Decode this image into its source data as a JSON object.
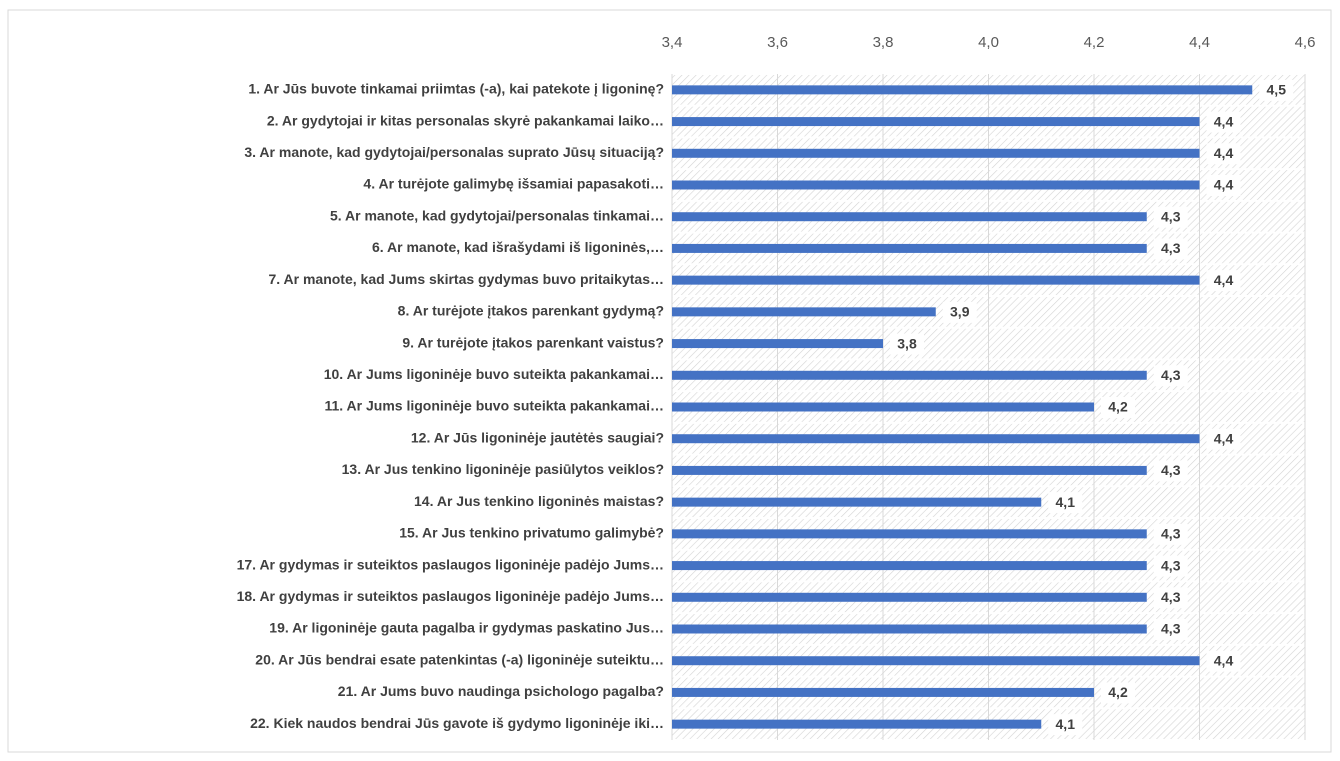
{
  "chart_data": {
    "type": "bar",
    "orientation": "horizontal",
    "categories": [
      "1. Ar Jūs buvote tinkamai priimtas (-a), kai patekote į ligoninę?",
      "2. Ar gydytojai ir kitas personalas skyrė pakankamai laiko…",
      "3. Ar manote, kad gydytojai/personalas suprato Jūsų situaciją?",
      "4. Ar turėjote galimybę išsamiai papasakoti…",
      "5. Ar manote, kad gydytojai/personalas tinkamai…",
      "6. Ar manote, kad išrašydami iš ligoninės,…",
      "7. Ar manote, kad Jums skirtas gydymas buvo pritaikytas…",
      "8. Ar turėjote įtakos parenkant gydymą?",
      "9. Ar turėjote įtakos parenkant vaistus?",
      "10. Ar Jums ligoninėje buvo suteikta pakankamai…",
      "11. Ar Jums ligoninėje buvo suteikta pakankamai…",
      "12. Ar Jūs ligoninėje jautėtės saugiai?",
      "13. Ar Jus tenkino ligoninėje pasiūlytos veiklos?",
      "14. Ar Jus tenkino ligoninės maistas?",
      "15. Ar Jus tenkino privatumo galimybė?",
      "17. Ar gydymas ir suteiktos paslaugos ligoninėje padėjo Jums…",
      "18. Ar gydymas ir suteiktos paslaugos ligoninėje padėjo Jums…",
      "19. Ar ligoninėje gauta pagalba ir gydymas paskatino Jus…",
      "20. Ar Jūs bendrai esate patenkintas (-a) ligoninėje suteiktu…",
      "21. Ar Jums buvo naudinga psichologo pagalba?",
      "22. Kiek naudos bendrai Jūs gavote iš gydymo ligoninėje iki…"
    ],
    "values": [
      4.5,
      4.4,
      4.4,
      4.4,
      4.3,
      4.3,
      4.4,
      3.9,
      3.8,
      4.3,
      4.2,
      4.4,
      4.3,
      4.1,
      4.3,
      4.3,
      4.3,
      4.3,
      4.4,
      4.2,
      4.1
    ],
    "value_labels": [
      "4,5",
      "4,4",
      "4,4",
      "4,4",
      "4,3",
      "4,3",
      "4,4",
      "3,9",
      "3,8",
      "4,3",
      "4,2",
      "4,4",
      "4,3",
      "4,1",
      "4,3",
      "4,3",
      "4,3",
      "4,3",
      "4,4",
      "4,2",
      "4,1"
    ],
    "color": "#4472c4",
    "xlim": [
      3.4,
      4.6
    ],
    "xticks": [
      {
        "value": 3.4,
        "label": "3,4"
      },
      {
        "value": 3.6,
        "label": "3,6"
      },
      {
        "value": 3.8,
        "label": "3,8"
      },
      {
        "value": 4.0,
        "label": "4,0"
      },
      {
        "value": 4.2,
        "label": "4,2"
      },
      {
        "value": 4.4,
        "label": "4,4"
      },
      {
        "value": 4.6,
        "label": "4,6"
      }
    ],
    "grid": true
  }
}
